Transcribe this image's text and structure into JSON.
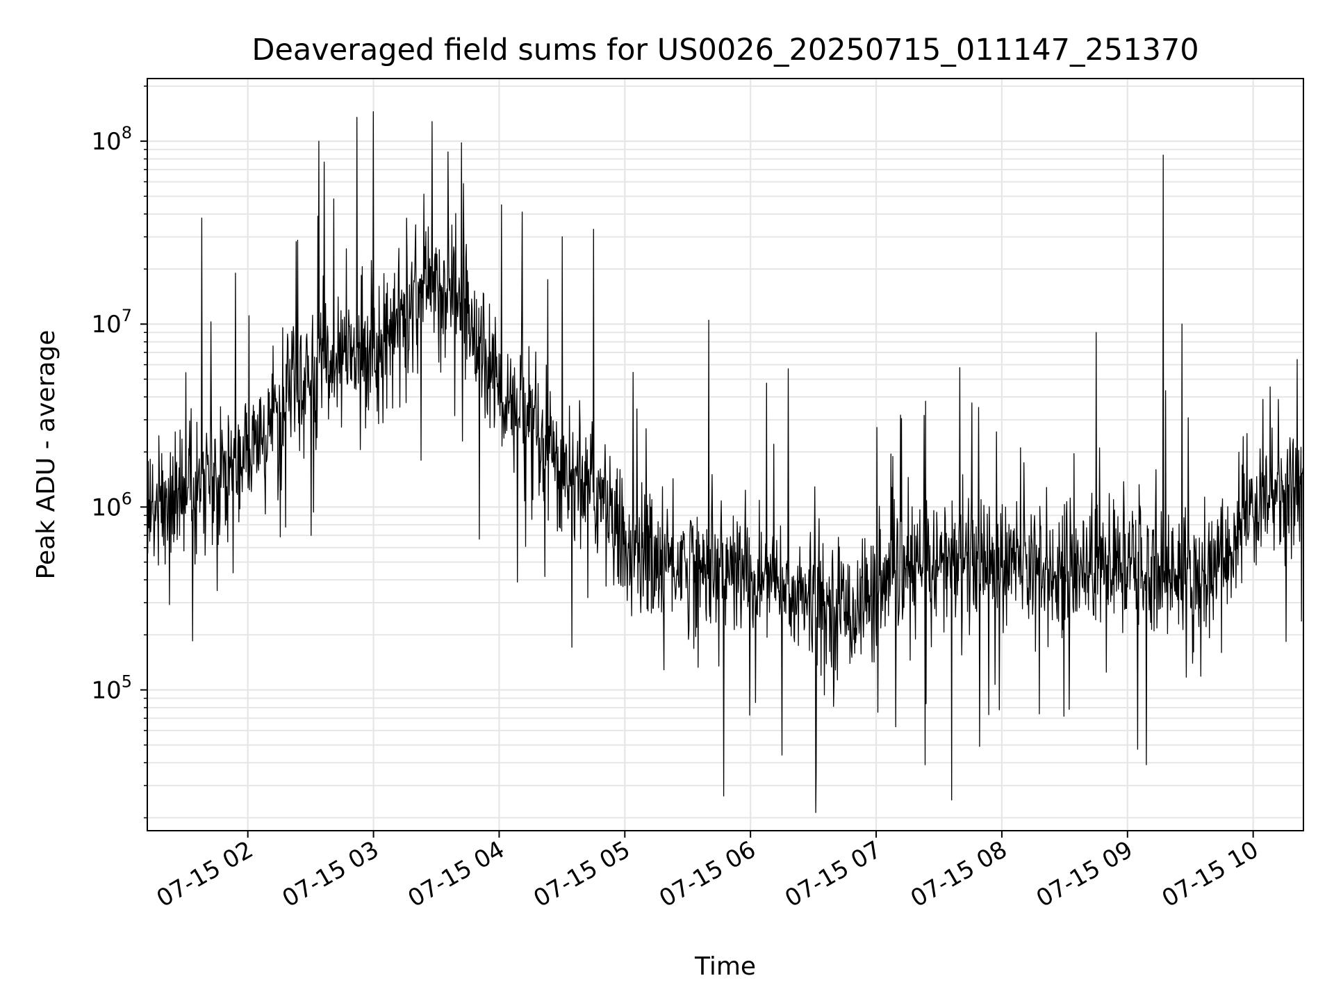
{
  "chart_data": {
    "type": "line",
    "title": "Deaveraged field sums for US0026_20250715_011147_251370",
    "xlabel": "Time",
    "ylabel": "Peak ADU - average",
    "yscale": "log",
    "grid": true,
    "grid_minor": true,
    "legend": "none",
    "line_color": "#000000",
    "grid_color": "#e6e6e6",
    "xlim": [
      "2025-07-15 01:12",
      "2025-07-15 10:24"
    ],
    "ylim": [
      17000,
      220000000
    ],
    "x_ticks": [
      "2025-07-15 02:00",
      "2025-07-15 03:00",
      "2025-07-15 04:00",
      "2025-07-15 05:00",
      "2025-07-15 06:00",
      "2025-07-15 07:00",
      "2025-07-15 08:00",
      "2025-07-15 09:00",
      "2025-07-15 10:00"
    ],
    "x_tick_labels": [
      "07-15 02",
      "07-15 03",
      "07-15 04",
      "07-15 05",
      "07-15 06",
      "07-15 07",
      "07-15 08",
      "07-15 09",
      "07-15 10"
    ],
    "y_ticks": [
      {
        "value": 100000,
        "base": "10",
        "exp": "5"
      },
      {
        "value": 1000000,
        "base": "10",
        "exp": "6"
      },
      {
        "value": 10000000,
        "base": "10",
        "exp": "7"
      },
      {
        "value": 100000000,
        "base": "10",
        "exp": "8"
      }
    ],
    "series": [
      {
        "x": [
          "2025-07-15 01:12",
          "2025-07-15 01:24",
          "2025-07-15 01:36",
          "2025-07-15 01:48",
          "2025-07-15 02:00",
          "2025-07-15 02:12",
          "2025-07-15 02:24",
          "2025-07-15 02:36",
          "2025-07-15 02:48",
          "2025-07-15 03:00",
          "2025-07-15 03:12",
          "2025-07-15 03:24",
          "2025-07-15 03:36",
          "2025-07-15 03:48",
          "2025-07-15 04:00",
          "2025-07-15 04:12",
          "2025-07-15 04:24",
          "2025-07-15 04:36",
          "2025-07-15 04:48",
          "2025-07-15 05:00",
          "2025-07-15 05:12",
          "2025-07-15 05:24",
          "2025-07-15 05:36",
          "2025-07-15 05:48",
          "2025-07-15 06:00",
          "2025-07-15 06:12",
          "2025-07-15 06:24",
          "2025-07-15 06:36",
          "2025-07-15 06:48",
          "2025-07-15 07:00",
          "2025-07-15 07:12",
          "2025-07-15 07:24",
          "2025-07-15 07:36",
          "2025-07-15 07:48",
          "2025-07-15 08:00",
          "2025-07-15 08:12",
          "2025-07-15 08:24",
          "2025-07-15 08:36",
          "2025-07-15 08:48",
          "2025-07-15 09:00",
          "2025-07-15 09:12",
          "2025-07-15 09:24",
          "2025-07-15 09:36",
          "2025-07-15 09:48",
          "2025-07-15 10:00",
          "2025-07-15 10:12",
          "2025-07-15 10:24"
        ],
        "y": [
          900000,
          1100000,
          1200000,
          1600000,
          1800000,
          3000000,
          4500000,
          6000000,
          6500000,
          7500000,
          10000000,
          15000000,
          17000000,
          9000000,
          4500000,
          2500000,
          1800000,
          1500000,
          1200000,
          600000,
          550000,
          500000,
          480000,
          450000,
          420000,
          380000,
          320000,
          280000,
          290000,
          330000,
          420000,
          480000,
          520000,
          550000,
          500000,
          470000,
          480000,
          500000,
          470000,
          460000,
          450000,
          420000,
          400000,
          550000,
          1100000,
          1150000,
          1250000
        ],
        "spikes": [
          {
            "x": "2025-07-15 01:38",
            "y": 38000000
          },
          {
            "x": "2025-07-15 01:54",
            "y": 19000000
          },
          {
            "x": "2025-07-15 02:34",
            "y": 100000000
          },
          {
            "x": "2025-07-15 02:52",
            "y": 135000000
          },
          {
            "x": "2025-07-15 03:00",
            "y": 145000000
          },
          {
            "x": "2025-07-15 03:28",
            "y": 128000000
          },
          {
            "x": "2025-07-15 03:42",
            "y": 98000000
          },
          {
            "x": "2025-07-15 04:11",
            "y": 41000000
          },
          {
            "x": "2025-07-15 04:30",
            "y": 30000000
          },
          {
            "x": "2025-07-15 04:45",
            "y": 33000000
          },
          {
            "x": "2025-07-15 05:40",
            "y": 10500000
          },
          {
            "x": "2025-07-15 05:45",
            "y": 135000
          },
          {
            "x": "2025-07-15 06:15",
            "y": 44000
          },
          {
            "x": "2025-07-15 06:18",
            "y": 5700000
          },
          {
            "x": "2025-07-15 07:36",
            "y": 25000
          },
          {
            "x": "2025-07-15 07:49",
            "y": 3500000
          },
          {
            "x": "2025-07-15 08:45",
            "y": 9000000
          },
          {
            "x": "2025-07-15 09:09",
            "y": 39000
          },
          {
            "x": "2025-07-15 09:17",
            "y": 84000000
          },
          {
            "x": "2025-07-15 09:26",
            "y": 10000000
          },
          {
            "x": "2025-07-15 10:21",
            "y": 6400000
          }
        ]
      }
    ]
  }
}
